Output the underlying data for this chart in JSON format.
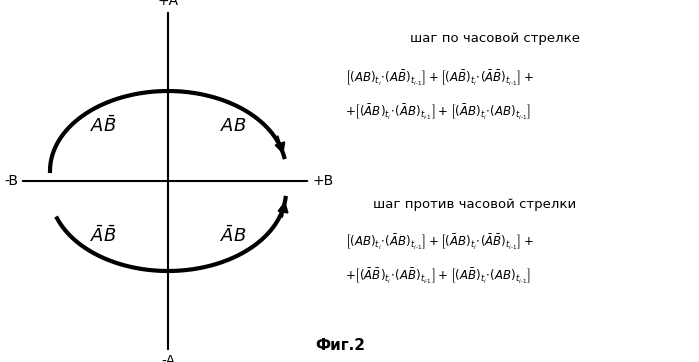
{
  "bg_color": "#ffffff",
  "title": "Фиг.2",
  "axis_top": "+A",
  "axis_bottom": "-A",
  "axis_left": "-B",
  "axis_right": "+B",
  "quad_tl": "A$\\bar{B}$",
  "quad_tr": "AB",
  "quad_bl": "$\\bar{A}\\bar{B}$",
  "quad_br": "$\\bar{A}B$",
  "cw_title": "шаг по часовой стрелке",
  "ccw_title": "шаг против часовой стрелки",
  "cw_f1": "$[(AB)_{t_i}\\!\\cdot\\!(A\\bar{B})_{t_{i\\text{-}1}}]+[(A\\bar{B})_{t_i}\\!\\cdot\\!(\\bar{A}\\bar{B})_{t_{i\\text{-}1}}]+$",
  "cw_f2": "$+[(\\bar{A}B)_{t_i}\\!\\cdot\\!(\\bar{A}B)_{t_{i\\text{-}1}}]+[(\\bar{A}B)_{t_i}\\!\\cdot\\!(AB)_{t_{i\\text{-}1}}]$",
  "ccw_f1": "$[(AB)_{t_i}\\!\\cdot\\!(\\bar{A}B)_{t_{i\\text{-}1}}]+[(\\bar{A}B)_{t_i}\\!\\cdot\\!(\\bar{A}\\bar{B})_{t_{i\\text{-}1}}]+$",
  "ccw_f2": "$+[(\\bar{A}\\bar{B})_{t_i}\\!\\cdot\\!(A\\bar{B})_{t_{i\\text{-}1}}]+[(A\\bar{B})_{t_i}\\!\\cdot\\!(AB)_{t_{i\\text{-}1}}]$"
}
